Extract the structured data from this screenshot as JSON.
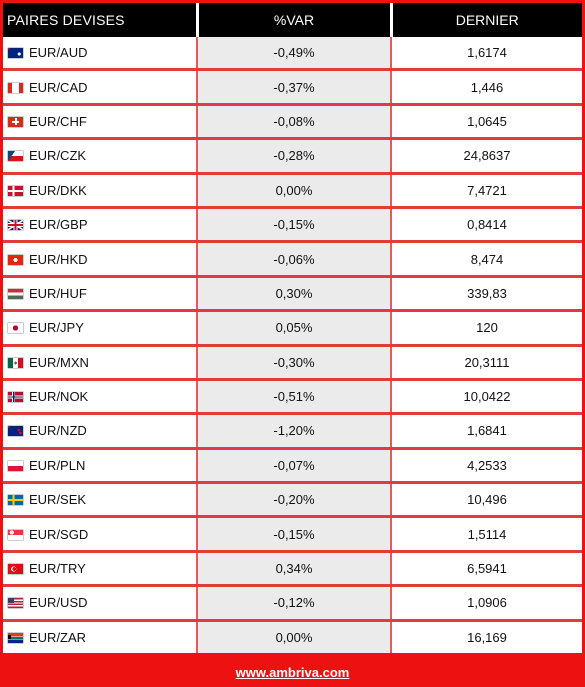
{
  "header": {
    "col_pair": "PAIRES DEVISES",
    "col_var": "%VAR",
    "col_last": "DERNIER"
  },
  "rows": [
    {
      "pair": "EUR/AUD",
      "var": "-0,49%",
      "last": "1,6174",
      "flag_icon": "australia-flag-icon"
    },
    {
      "pair": "EUR/CAD",
      "var": "-0,37%",
      "last": "1,446",
      "flag_icon": "canada-flag-icon"
    },
    {
      "pair": "EUR/CHF",
      "var": "-0,08%",
      "last": "1,0645",
      "flag_icon": "switzerland-flag-icon"
    },
    {
      "pair": "EUR/CZK",
      "var": "-0,28%",
      "last": "24,8637",
      "flag_icon": "czech-flag-icon"
    },
    {
      "pair": "EUR/DKK",
      "var": "0,00%",
      "last": "7,4721",
      "flag_icon": "denmark-flag-icon"
    },
    {
      "pair": "EUR/GBP",
      "var": "-0,15%",
      "last": "0,8414",
      "flag_icon": "uk-flag-icon"
    },
    {
      "pair": "EUR/HKD",
      "var": "-0,06%",
      "last": "8,474",
      "flag_icon": "hong-kong-flag-icon"
    },
    {
      "pair": "EUR/HUF",
      "var": "0,30%",
      "last": "339,83",
      "flag_icon": "hungary-flag-icon"
    },
    {
      "pair": "EUR/JPY",
      "var": "0,05%",
      "last": "120",
      "flag_icon": "japan-flag-icon"
    },
    {
      "pair": "EUR/MXN",
      "var": "-0,30%",
      "last": "20,3111",
      "flag_icon": "mexico-flag-icon"
    },
    {
      "pair": "EUR/NOK",
      "var": "-0,51%",
      "last": "10,0422",
      "flag_icon": "norway-flag-icon"
    },
    {
      "pair": "EUR/NZD",
      "var": "-1,20%",
      "last": "1,6841",
      "flag_icon": "new-zealand-flag-icon"
    },
    {
      "pair": "EUR/PLN",
      "var": "-0,07%",
      "last": "4,2533",
      "flag_icon": "poland-flag-icon"
    },
    {
      "pair": "EUR/SEK",
      "var": "-0,20%",
      "last": "10,496",
      "flag_icon": "sweden-flag-icon"
    },
    {
      "pair": "EUR/SGD",
      "var": "-0,15%",
      "last": "1,5114",
      "flag_icon": "singapore-flag-icon"
    },
    {
      "pair": "EUR/TRY",
      "var": "0,34%",
      "last": "6,5941",
      "flag_icon": "turkey-flag-icon"
    },
    {
      "pair": "EUR/USD",
      "var": "-0,12%",
      "last": "1,0906",
      "flag_icon": "usa-flag-icon"
    },
    {
      "pair": "EUR/ZAR",
      "var": "0,00%",
      "last": "16,169",
      "flag_icon": "south-africa-flag-icon"
    }
  ],
  "footer": {
    "link_text": "www.ambriva.com"
  },
  "colors": {
    "frame": "#ee1111",
    "header_bg": "#000000",
    "var_column_bg": "#ebebeb"
  }
}
